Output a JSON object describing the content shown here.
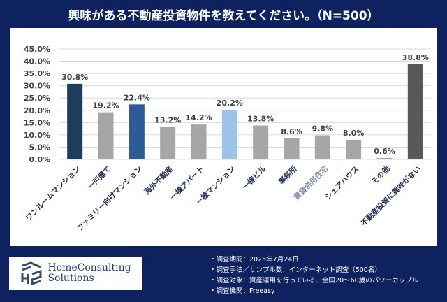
{
  "title": "興味がある不動産投資物件を教えてください。（N=500）",
  "chart_data": {
    "type": "bar",
    "categories": [
      "ワンルームマンション",
      "一戸建て",
      "ファミリー向けマンション",
      "海外不動産",
      "一棟アパート",
      "一棟マンション",
      "一棟ビル",
      "事務所",
      "賃貸併用住宅",
      "シェアハウス",
      "その他",
      "不動産投資に興味がない"
    ],
    "values": [
      30.8,
      19.2,
      22.4,
      13.2,
      14.2,
      20.2,
      13.8,
      8.6,
      9.8,
      8.0,
      0.6,
      38.8
    ],
    "data_labels": [
      "30.8%",
      "19.2%",
      "22.4%",
      "13.2%",
      "14.2%",
      "20.2%",
      "13.8%",
      "8.6%",
      "9.8%",
      "8.0%",
      "0.6%",
      "38.8%"
    ],
    "colors": [
      "#1f3b5e",
      "#a6a6a6",
      "#2b5c96",
      "#a6a6a6",
      "#a6a6a6",
      "#9dc3e6",
      "#a6a6a6",
      "#a6a6a6",
      "#a6a6a6",
      "#a6a6a6",
      "#a6a6a6",
      "#595959"
    ],
    "ylim": [
      0,
      45
    ],
    "yticks": [
      "0.0%",
      "5.0%",
      "10.0%",
      "15.0%",
      "20.0%",
      "25.0%",
      "30.0%",
      "35.0%",
      "40.0%",
      "45.0%"
    ],
    "grid": true
  },
  "logo": {
    "line1": "HomeConsulting",
    "line2": "Solutions"
  },
  "notes": [
    "・調査期間：2025年7月24日",
    "・調査手法／サンプル数：インターネット調査（500名）",
    "・調査対象：資産運用を行っている、全国20～60歳のパワーカップル",
    "・調査機関：Freeasy"
  ]
}
